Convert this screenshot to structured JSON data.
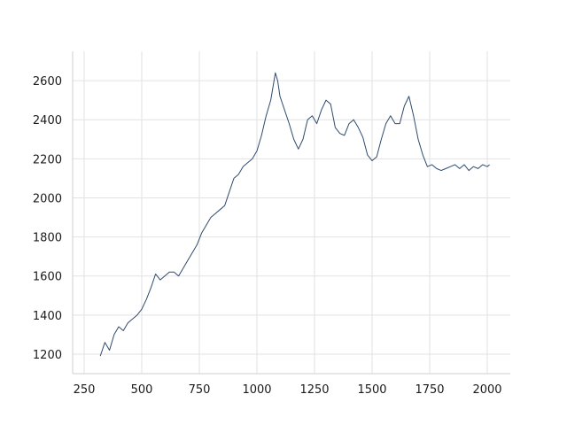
{
  "chart_data": {
    "type": "line",
    "title": "",
    "xlabel": "",
    "ylabel": "",
    "xlim": [
      200,
      2100
    ],
    "ylim": [
      1100,
      2750
    ],
    "x_ticks": [
      250,
      500,
      750,
      1000,
      1250,
      1500,
      1750,
      2000
    ],
    "y_ticks": [
      1200,
      1400,
      1600,
      1800,
      2000,
      2200,
      2400,
      2600
    ],
    "x_tick_labels": [
      "250",
      "500",
      "750",
      "1000",
      "1250",
      "1500",
      "1750",
      "2000"
    ],
    "y_tick_labels": [
      "1200",
      "1400",
      "1600",
      "1800",
      "2000",
      "2200",
      "2400",
      "2600"
    ],
    "grid": true,
    "series": [
      {
        "color": "#2f4a6e",
        "x": [
          320,
          340,
          360,
          380,
          400,
          420,
          440,
          460,
          480,
          500,
          520,
          540,
          560,
          580,
          600,
          620,
          640,
          660,
          680,
          700,
          720,
          740,
          760,
          780,
          800,
          820,
          840,
          860,
          880,
          900,
          920,
          940,
          960,
          980,
          1000,
          1020,
          1040,
          1060,
          1080,
          1090,
          1100,
          1120,
          1140,
          1160,
          1180,
          1200,
          1220,
          1240,
          1260,
          1280,
          1300,
          1320,
          1340,
          1360,
          1380,
          1400,
          1420,
          1440,
          1460,
          1480,
          1500,
          1520,
          1540,
          1560,
          1580,
          1600,
          1620,
          1640,
          1660,
          1680,
          1700,
          1720,
          1740,
          1760,
          1780,
          1800,
          1820,
          1840,
          1860,
          1880,
          1900,
          1920,
          1940,
          1960,
          1980,
          2000,
          2010
        ],
        "y": [
          1190,
          1260,
          1220,
          1300,
          1340,
          1320,
          1360,
          1380,
          1400,
          1430,
          1480,
          1540,
          1610,
          1580,
          1600,
          1620,
          1620,
          1600,
          1640,
          1680,
          1720,
          1760,
          1820,
          1860,
          1900,
          1920,
          1940,
          1960,
          2030,
          2100,
          2120,
          2160,
          2180,
          2200,
          2240,
          2320,
          2420,
          2500,
          2640,
          2600,
          2520,
          2450,
          2380,
          2300,
          2250,
          2300,
          2400,
          2420,
          2380,
          2450,
          2500,
          2480,
          2360,
          2330,
          2320,
          2380,
          2400,
          2360,
          2310,
          2220,
          2190,
          2210,
          2300,
          2380,
          2420,
          2380,
          2380,
          2470,
          2520,
          2420,
          2300,
          2220,
          2160,
          2170,
          2150,
          2140,
          2150,
          2160,
          2170,
          2150,
          2170,
          2140,
          2160,
          2150,
          2170,
          2160,
          2170
        ]
      }
    ]
  }
}
